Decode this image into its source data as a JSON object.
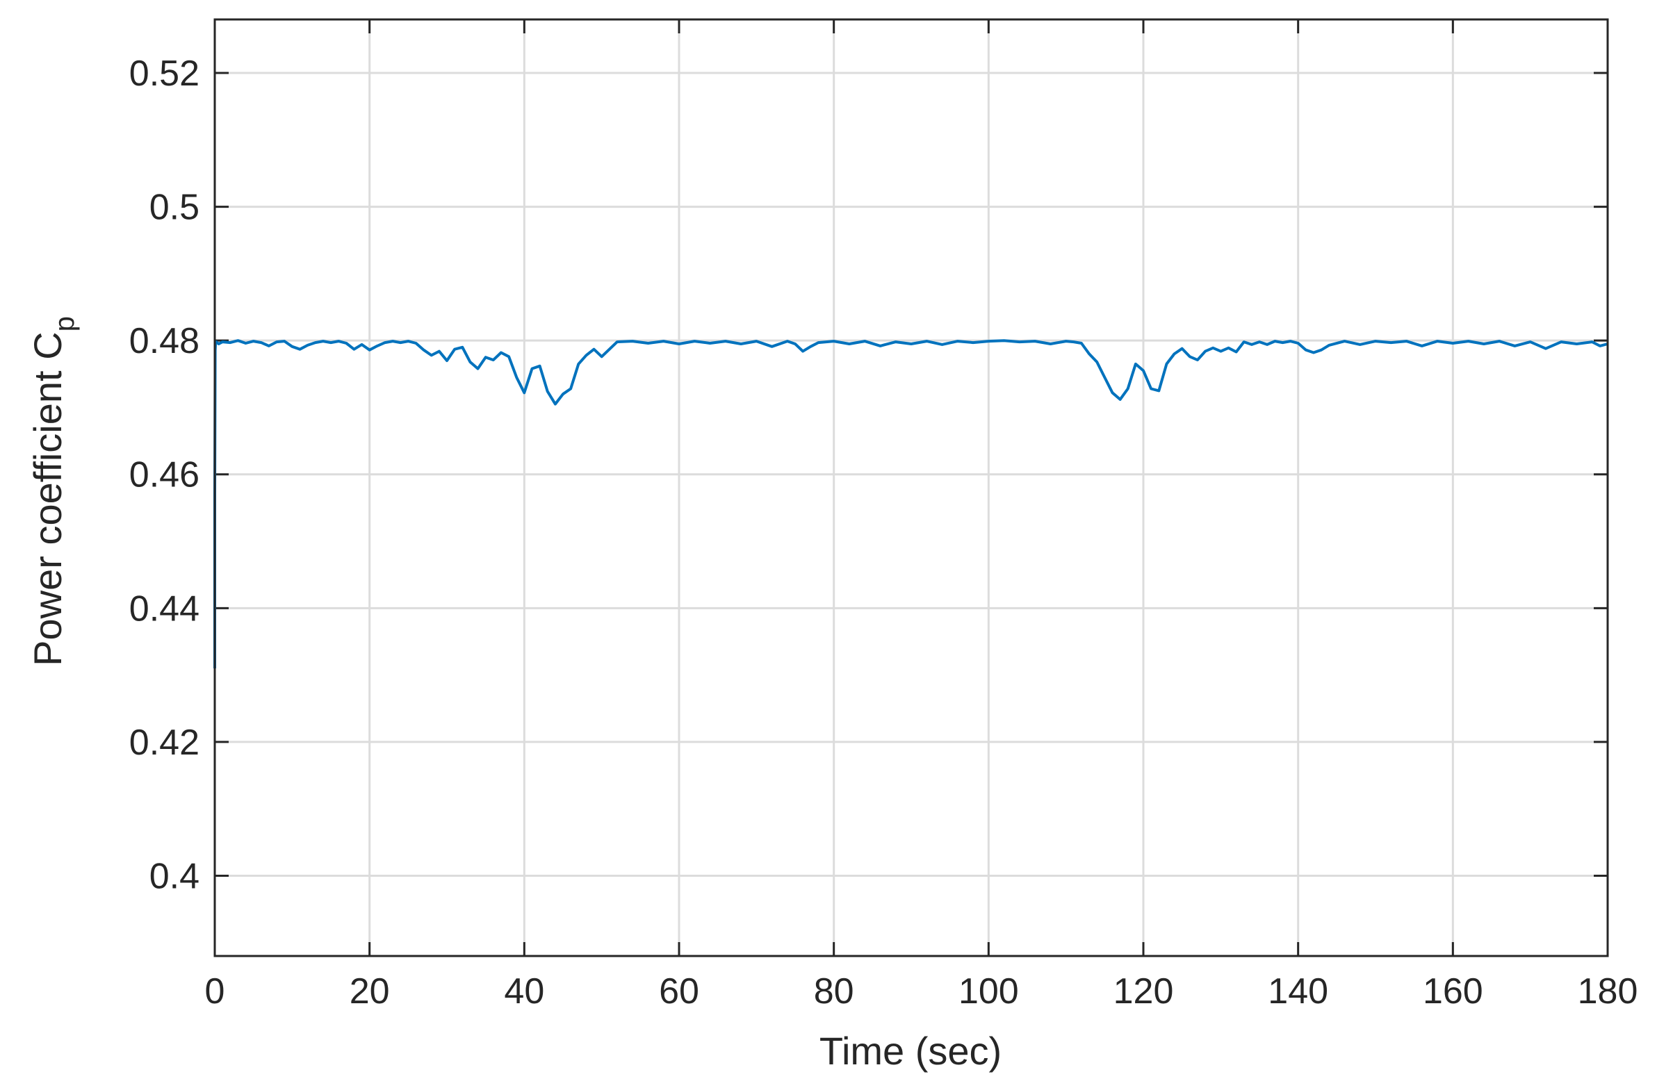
{
  "chart_data": {
    "type": "line",
    "title": "",
    "xlabel": "Time (sec)",
    "ylabel": "Power coefficient C",
    "ylabel_subscript": "p",
    "xlim": [
      0,
      180
    ],
    "ylim": [
      0.388,
      0.528
    ],
    "x_ticks": [
      0,
      20,
      40,
      60,
      80,
      100,
      120,
      140,
      160,
      180
    ],
    "x_tick_labels": [
      "0",
      "20",
      "40",
      "60",
      "80",
      "100",
      "120",
      "140",
      "160",
      "180"
    ],
    "y_ticks": [
      0.4,
      0.42,
      0.44,
      0.46,
      0.48,
      0.5,
      0.52
    ],
    "y_tick_labels": [
      "0.4",
      "0.42",
      "0.44",
      "0.46",
      "0.48",
      "0.5",
      "0.52"
    ],
    "grid": true,
    "line_color": "#0072BD",
    "series": [
      {
        "values_x": [
          0,
          0,
          0.05,
          0.1,
          0.2,
          0.5,
          1,
          2,
          3,
          4,
          5,
          6,
          7,
          8,
          9,
          10,
          11,
          12,
          13,
          14,
          15,
          16,
          17,
          18,
          19,
          20,
          21,
          22,
          23,
          24,
          25,
          26,
          27,
          28,
          29,
          30,
          31,
          32,
          33,
          34,
          35,
          36,
          37,
          38,
          39,
          40,
          41,
          42,
          43,
          44,
          45,
          46,
          47,
          48,
          49,
          50,
          52,
          54,
          56,
          58,
          60,
          62,
          64,
          66,
          68,
          70,
          72,
          74,
          75,
          76,
          77,
          78,
          80,
          82,
          84,
          86,
          88,
          90,
          92,
          94,
          96,
          98,
          100,
          102,
          104,
          106,
          108,
          110,
          111,
          112,
          113,
          114,
          115,
          116,
          117,
          118,
          119,
          120,
          121,
          122,
          123,
          124,
          125,
          126,
          127,
          128,
          129,
          130,
          131,
          132,
          133,
          134,
          135,
          136,
          137,
          138,
          139,
          140,
          141,
          142,
          143,
          144,
          146,
          148,
          150,
          152,
          154,
          156,
          158,
          160,
          162,
          164,
          166,
          168,
          170,
          172,
          174,
          176,
          178,
          179,
          180
        ],
        "values_y": [
          0.431,
          0.457,
          0.4785,
          0.4795,
          0.4798,
          0.4795,
          0.4798,
          0.4797,
          0.48,
          0.4796,
          0.4799,
          0.4797,
          0.4792,
          0.4798,
          0.4799,
          0.4791,
          0.4787,
          0.4793,
          0.4797,
          0.4799,
          0.4797,
          0.4799,
          0.4796,
          0.4787,
          0.4794,
          0.4786,
          0.4792,
          0.4797,
          0.4799,
          0.4797,
          0.4799,
          0.4796,
          0.4786,
          0.4778,
          0.4784,
          0.477,
          0.4787,
          0.479,
          0.4768,
          0.4758,
          0.4775,
          0.4771,
          0.4782,
          0.4776,
          0.4745,
          0.4722,
          0.4758,
          0.4762,
          0.4724,
          0.4705,
          0.472,
          0.4728,
          0.4765,
          0.4778,
          0.4787,
          0.4776,
          0.4798,
          0.4799,
          0.4796,
          0.4799,
          0.4795,
          0.4799,
          0.4796,
          0.4799,
          0.4795,
          0.4799,
          0.4791,
          0.4799,
          0.4795,
          0.4784,
          0.4791,
          0.4797,
          0.4799,
          0.4795,
          0.4799,
          0.4792,
          0.4798,
          0.4795,
          0.4799,
          0.4794,
          0.4799,
          0.4797,
          0.4799,
          0.48,
          0.4798,
          0.4799,
          0.4795,
          0.4799,
          0.4798,
          0.4796,
          0.478,
          0.4768,
          0.4745,
          0.4722,
          0.4712,
          0.4728,
          0.4765,
          0.4755,
          0.4728,
          0.4725,
          0.4765,
          0.478,
          0.4788,
          0.4776,
          0.4771,
          0.4784,
          0.4789,
          0.4784,
          0.4789,
          0.4783,
          0.4798,
          0.4794,
          0.4798,
          0.4794,
          0.4799,
          0.4797,
          0.4799,
          0.4796,
          0.4786,
          0.4782,
          0.4786,
          0.4793,
          0.4799,
          0.4794,
          0.4799,
          0.4797,
          0.4799,
          0.4792,
          0.4799,
          0.4796,
          0.4799,
          0.4795,
          0.4799,
          0.4792,
          0.4798,
          0.4788,
          0.4798,
          0.4795,
          0.4798,
          0.4792,
          0.4795
        ]
      }
    ]
  }
}
